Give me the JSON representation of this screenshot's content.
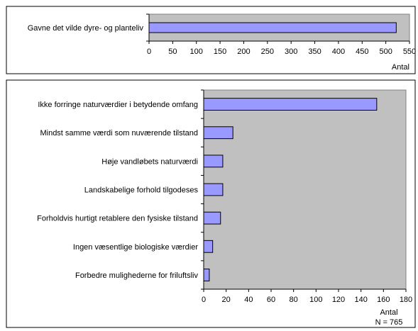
{
  "chart_data": [
    {
      "type": "bar",
      "orientation": "horizontal",
      "categories": [
        "Gavne det vilde dyre- og planteliv"
      ],
      "values": [
        522
      ],
      "xlabel": "Antal",
      "xlim": [
        0,
        550
      ],
      "xticks": [
        0,
        50,
        100,
        150,
        200,
        250,
        300,
        350,
        400,
        450,
        500,
        550
      ],
      "grid": false,
      "plot_background": "#c0c0c0",
      "bar_color": "#9999ff"
    },
    {
      "type": "bar",
      "orientation": "horizontal",
      "categories": [
        "Ikke forringe naturværdier i betydende omfang",
        "Mindst samme værdi som nuværende tilstand",
        "Høje vandløbets naturværdi",
        "Landskabelige forhold tilgodeses",
        "Forholdvis hurtigt retablere den fysiske tilstand",
        "Ingen væsentlige biologiske værdier",
        "Forbedre mulighederne for friluftsliv"
      ],
      "values": [
        154,
        26,
        17,
        17,
        15,
        8,
        5
      ],
      "xlabel": "Antal",
      "xlim": [
        0,
        180
      ],
      "xticks": [
        0,
        20,
        40,
        60,
        80,
        100,
        120,
        140,
        160,
        180
      ],
      "note": "N = 765",
      "grid": false,
      "plot_background": "#c0c0c0",
      "bar_color": "#9999ff"
    }
  ]
}
